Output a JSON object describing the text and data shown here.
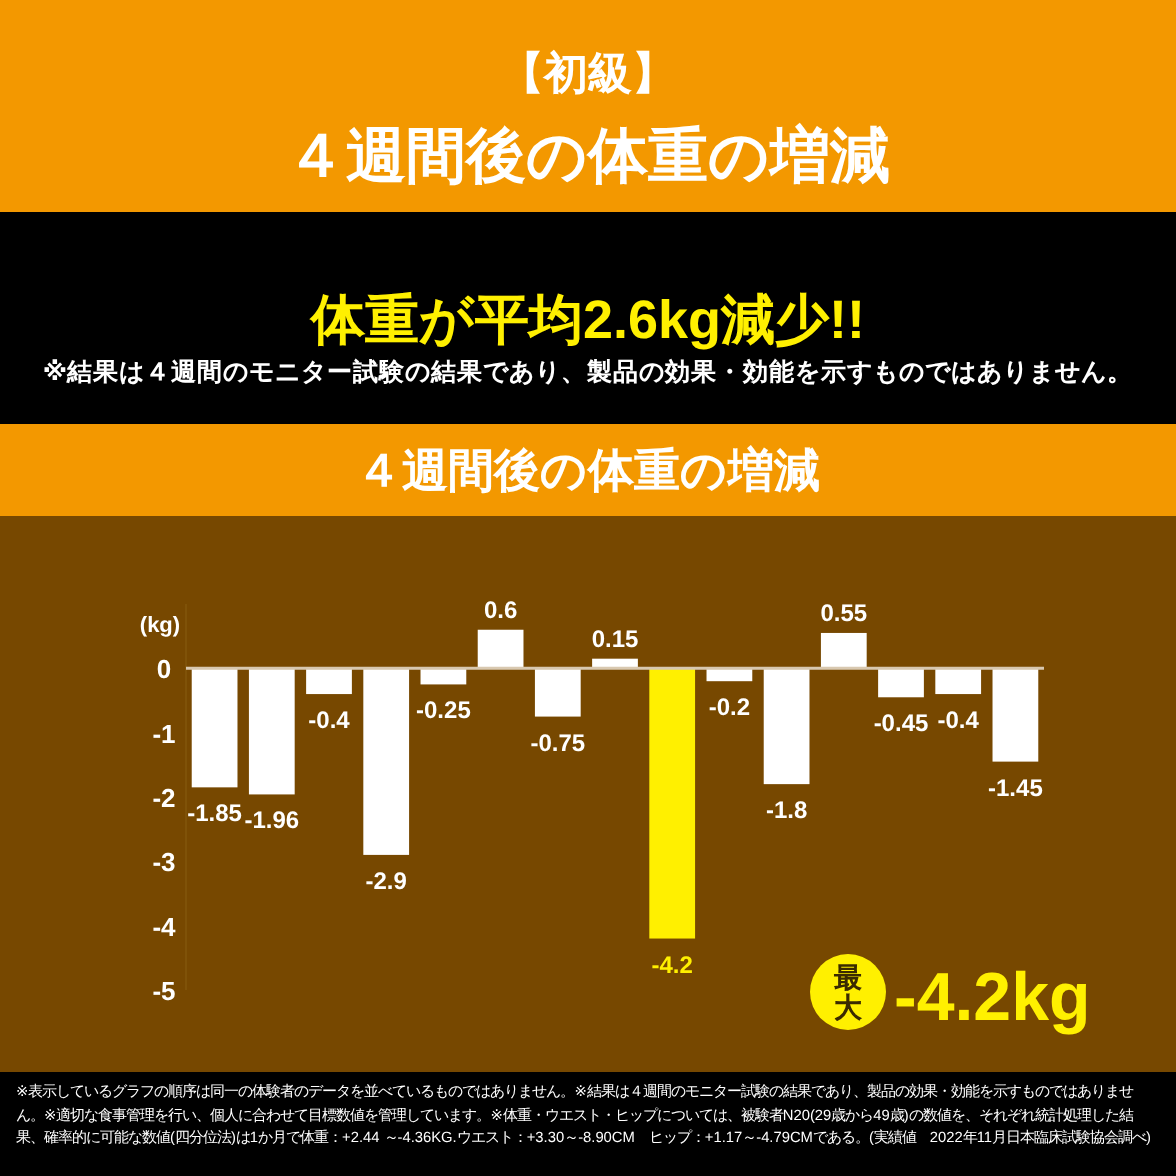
{
  "chart_data": {
    "type": "bar",
    "title": "４週間後の体重の増減",
    "ylabel": "(kg)",
    "annotations": [
      "【初級】",
      "４週間後の体重の増減",
      "体重が平均2.6kg減少!!",
      "※結果は４週間のモニター試験の結果であり、製品の効果・効能を示すものではありません。",
      "最大",
      "-4.2kg",
      "※表示しているグラフの順序は同一の体験者のデータを並べているものではありません。※結果は４週間のモニター試験の結果であり、製品の効果・効能を示すものではありません。※適切な食事管理を行い、個人に合わせて目標数値を管理しています。※体重・ウエスト・ヒップについては、被験者N20(29歳から49歳)の数値を、それぞれ統計処理した結果、確率的に可能な数値(四分位法)は1か月で体重：+2.44 ～-4.36KG.ウエスト：+3.30～-8.90CM　ヒップ：+1.17～-4.79CMである。(実績値　2022年11月日本臨床試験協会調べ)"
    ],
    "categories": [
      null,
      null,
      null,
      null,
      null,
      null,
      null,
      null,
      null,
      null,
      null,
      null,
      null,
      null,
      null
    ],
    "values": [
      -1.85,
      -1.96,
      -0.4,
      -2.9,
      -0.25,
      0.6,
      -0.75,
      0.15,
      -4.2,
      -0.2,
      -1.8,
      0.55,
      -0.45,
      -0.4,
      -1.45
    ],
    "colors": [
      "#ffffff",
      "#ffffff",
      "#ffffff",
      "#ffffff",
      "#ffffff",
      "#ffffff",
      "#ffffff",
      "#ffffff",
      "#fff000",
      "#ffffff",
      "#ffffff",
      "#ffffff",
      "#ffffff",
      "#ffffff",
      "#ffffff"
    ],
    "ylim": [
      -5,
      1
    ],
    "yticks": [
      0,
      -1,
      -2,
      -3,
      -4,
      -5
    ],
    "data_labels": true
  }
}
